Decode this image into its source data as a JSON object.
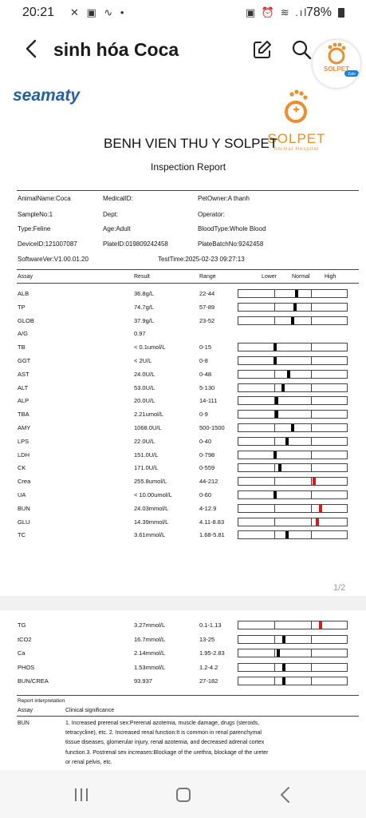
{
  "status_bar": {
    "time": "20:21",
    "left_icons": "✕ ▣ ∿ •",
    "right_icons": "▣ ⏰ ≋ .ıl",
    "battery": "78%"
  },
  "app_bar": {
    "title": "sinh hóa Coca",
    "avatar_label": "SOLPET",
    "avatar_badge": "Zalo"
  },
  "report": {
    "brand": "seamaty",
    "logo_name": "SOLPET",
    "logo_sub": "Animal Hospital",
    "hospital_name": "BENH VIEN THU Y SOLPET",
    "subtitle": "Inspection Report",
    "info": {
      "animal_name": "AnimalName:Coca",
      "medical_id": "MedicalID:",
      "pet_owner": "PetOwner:A thanh",
      "sample_no": "SampleNo:1",
      "dept": "Dept:",
      "operator": "Operator:",
      "type": "Type:Feline",
      "age": "Age:Adult",
      "blood_type": "BloodType:Whole Blood",
      "device_id": "DeviceID:121007087",
      "plate_id": "PlateID:019809242458",
      "plate_batch": "PlateBatchNo:9242458",
      "software": "SoftwareVer:V1.00.01.20",
      "test_time": "TestTime:2025-02-23 09:27:13"
    },
    "columns": {
      "assay": "Assay",
      "result": "Result",
      "range": "Range",
      "lower": "Lower",
      "normal": "Normal",
      "high": "High"
    },
    "rows": [
      {
        "assay": "ALB",
        "result": "36.8g/L",
        "range": "22-44",
        "level": 0.54,
        "high": false
      },
      {
        "assay": "TP",
        "result": "74.7g/L",
        "range": "57-89",
        "level": 0.52,
        "high": false
      },
      {
        "assay": "GLOB",
        "result": "37.9g/L",
        "range": "23-52",
        "level": 0.5,
        "high": false
      },
      {
        "assay": "A/G",
        "result": "0.97",
        "range": "",
        "level": null,
        "high": false
      },
      {
        "assay": "TB",
        "result": "< 0.1umol/L",
        "range": "0-15",
        "level": 0.34,
        "high": false
      },
      {
        "assay": "GGT",
        "result": "< 2U/L",
        "range": "0-8",
        "level": 0.34,
        "high": false
      },
      {
        "assay": "AST",
        "result": "24.0U/L",
        "range": "0-48",
        "level": 0.46,
        "high": false
      },
      {
        "assay": "ALT",
        "result": "53.0U/L",
        "range": "5-130",
        "level": 0.41,
        "high": false
      },
      {
        "assay": "ALP",
        "result": "20.0U/L",
        "range": "14-111",
        "level": 0.35,
        "high": false
      },
      {
        "assay": "TBA",
        "result": "2.21umol/L",
        "range": "0-9",
        "level": 0.35,
        "high": false
      },
      {
        "assay": "AMY",
        "result": "1068.0U/L",
        "range": "500-1500",
        "level": 0.5,
        "high": false
      },
      {
        "assay": "LPS",
        "result": "22.0U/L",
        "range": "0-40",
        "level": 0.45,
        "high": false
      },
      {
        "assay": "LDH",
        "result": "151.0U/L",
        "range": "0-798",
        "level": 0.34,
        "high": false
      },
      {
        "assay": "CK",
        "result": "171.0U/L",
        "range": "0-559",
        "level": 0.38,
        "high": false
      },
      {
        "assay": "Crea",
        "result": "255.8umol/L",
        "range": "44-212",
        "level": 0.7,
        "high": true
      },
      {
        "assay": "UA",
        "result": "< 10.00umol/L",
        "range": "0-60",
        "level": 0.34,
        "high": false
      },
      {
        "assay": "BUN",
        "result": "24.03mmol/L",
        "range": "4-12.9",
        "level": 0.76,
        "high": true
      },
      {
        "assay": "GLU",
        "result": "14.39mmol/L",
        "range": "4.11-8.83",
        "level": 0.73,
        "high": true
      },
      {
        "assay": "TC",
        "result": "3.61mmol/L",
        "range": "1.68-5.81",
        "level": 0.45,
        "high": false
      }
    ],
    "page_number": "1/2"
  },
  "report_page2": {
    "rows": [
      {
        "assay": "TG",
        "result": "3.27mmol/L",
        "range": "0.1-1.13",
        "level": 0.76,
        "high": true
      },
      {
        "assay": "tCO2",
        "result": "16.7mmol/L",
        "range": "13-25",
        "level": 0.42,
        "high": false
      },
      {
        "assay": "Ca",
        "result": "2.14mmol/L",
        "range": "1.95-2.83",
        "level": 0.37,
        "high": false
      },
      {
        "assay": "PHOS",
        "result": "1.53mmol/L",
        "range": "1.2-4.2",
        "level": 0.42,
        "high": false
      },
      {
        "assay": "BUN/CREA",
        "result": "93.937",
        "range": "27-182",
        "level": 0.42,
        "high": false
      }
    ],
    "interpretation_title": "Report interpretation",
    "interpretation_header_assay": "Assay",
    "interpretation_header_sig": "Clinical significance",
    "interpretation_assay": "BUN",
    "interpretation_text": "1. Increased prerenal sex:Prerenal azotemia, muscle damage, drugs (steroids, tetracycline), etc. 2. Increased renal function:It is common in renal parenchymal tissue diseases, glomerular injury, renal azotemia, and decreased adrenal cortex function.3. Postrenal sex increases:Blockage of the urethra, blockage of the ureter or renal pelvis, etc."
  },
  "colors": {
    "brand": "#2360a8",
    "logo": "#f08c2a",
    "high_marker": "#e01818"
  },
  "icons": [
    "back-icon",
    "edit-icon",
    "search-icon",
    "recent-apps-icon",
    "home-icon",
    "nav-back-icon"
  ]
}
